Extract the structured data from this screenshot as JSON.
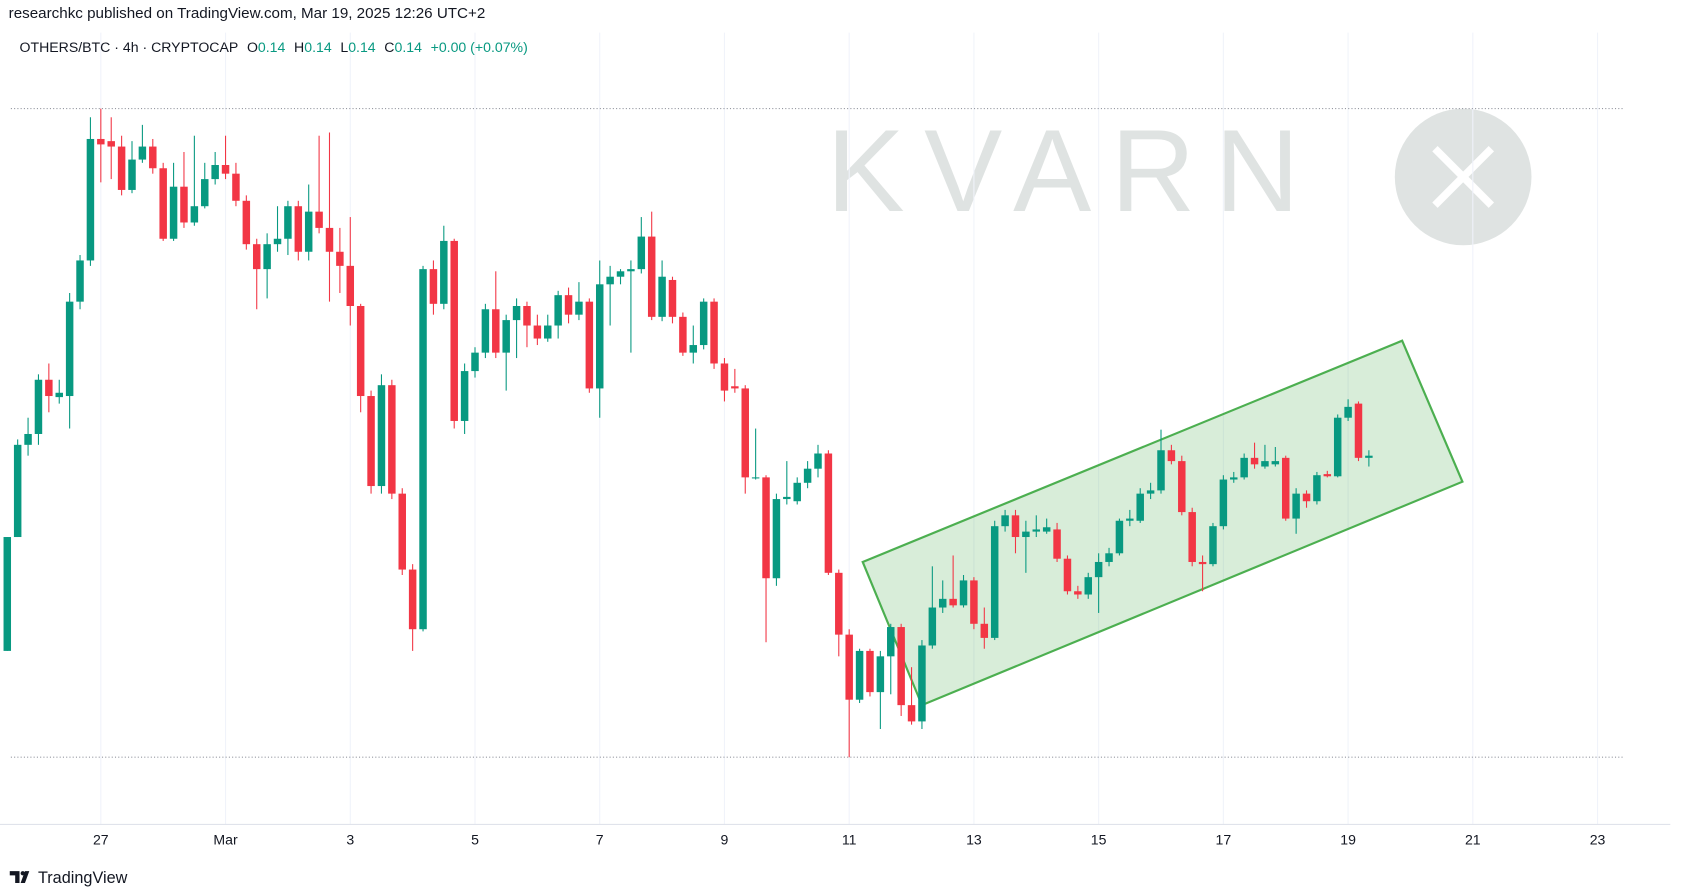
{
  "published": "researchkc published on TradingView.com, Mar 19, 2025 12:26 UTC+2",
  "footer": "TradingView",
  "chart_data": {
    "type": "candlestick",
    "symbol": "OTHERS/BTC · 4h · CRYPTOCAP",
    "ohlc_legend": [
      {
        "label": "O",
        "value": "0.14"
      },
      {
        "label": "H",
        "value": "0.14"
      },
      {
        "label": "L",
        "value": "0.14"
      },
      {
        "label": "C",
        "value": "0.14"
      }
    ],
    "change": "+0.00 (+0.07%)",
    "watermark": "KVARN",
    "up_color": "#089981",
    "down_color": "#f23645",
    "xlim": [
      -0.7,
      160
    ],
    "ylim": [
      0.106,
      0.179
    ],
    "xticks": [
      {
        "value": 9,
        "label": "27"
      },
      {
        "value": 21,
        "label": "Mar"
      },
      {
        "value": 33,
        "label": "3"
      },
      {
        "value": 45,
        "label": "5"
      },
      {
        "value": 57,
        "label": "7"
      },
      {
        "value": 69,
        "label": "9"
      },
      {
        "value": 81,
        "label": "11"
      },
      {
        "value": 93,
        "label": "13"
      },
      {
        "value": 105,
        "label": "15"
      },
      {
        "value": 117,
        "label": "17"
      },
      {
        "value": 129,
        "label": "19"
      },
      {
        "value": 141,
        "label": "21"
      },
      {
        "value": 153,
        "label": "23"
      }
    ],
    "grid": true,
    "levels": [
      0.172,
      0.1122
    ],
    "channel": {
      "color": "#4caf50",
      "x": [
        82.3,
        134.2,
        140.0,
        88.0
      ],
      "y": [
        0.1302,
        0.1506,
        0.1376,
        0.117
      ]
    },
    "open": [
      0.122,
      0.1325,
      0.141,
      0.142,
      0.147,
      0.1454,
      0.1455,
      0.1542,
      0.158,
      0.1692,
      0.169,
      0.1685,
      0.1645,
      0.1673,
      0.1685,
      0.1665,
      0.16,
      0.1648,
      0.1615,
      0.163,
      0.1655,
      0.1668,
      0.166,
      0.1635,
      0.1595,
      0.1572,
      0.1595,
      0.16,
      0.163,
      0.1588,
      0.1625,
      0.161,
      0.1588,
      0.1575,
      0.1538,
      0.1455,
      0.1372,
      0.1465,
      0.1365,
      0.1295,
      0.124,
      0.1572,
      0.154,
      0.1598,
      0.1432,
      0.1478,
      0.1495,
      0.1535,
      0.1495,
      0.1525,
      0.1538,
      0.152,
      0.1508,
      0.152,
      0.1548,
      0.153,
      0.1542,
      0.1462,
      0.1558,
      0.1565,
      0.157,
      0.1572,
      0.1602,
      0.1528,
      0.1562,
      0.1528,
      0.1495,
      0.1502,
      0.1542,
      0.1485,
      0.1464,
      0.1462,
      0.1379,
      0.138,
      0.1287,
      0.136,
      0.1358,
      0.1375,
      0.1388,
      0.1402,
      0.1292,
      0.1235,
      0.1175,
      0.122,
      0.1182,
      0.1215,
      0.1242,
      0.117,
      0.1155,
      0.1225,
      0.126,
      0.1268,
      0.1262,
      0.1285,
      0.1245,
      0.1232,
      0.1335,
      0.1345,
      0.1325,
      0.133,
      0.133,
      0.1332,
      0.1305,
      0.1275,
      0.1272,
      0.1288,
      0.1302,
      0.131,
      0.134,
      0.134,
      0.1365,
      0.1368,
      0.1405,
      0.1395,
      0.1348,
      0.1302,
      0.13,
      0.1335,
      0.1378,
      0.138,
      0.1398,
      0.139,
      0.1392,
      0.1398,
      0.1342,
      0.1365,
      0.1358,
      0.1383,
      0.1381,
      0.1435,
      0.1448,
      0.1398
    ],
    "high": [
      0.1325,
      0.1415,
      0.1435,
      0.1475,
      0.1485,
      0.147,
      0.155,
      0.1585,
      0.1712,
      0.172,
      0.1712,
      0.1695,
      0.169,
      0.1705,
      0.1692,
      0.167,
      0.167,
      0.168,
      0.1695,
      0.167,
      0.168,
      0.1695,
      0.167,
      0.164,
      0.16,
      0.1605,
      0.163,
      0.1635,
      0.1635,
      0.165,
      0.1695,
      0.1698,
      0.161,
      0.162,
      0.154,
      0.146,
      0.1475,
      0.147,
      0.137,
      0.13,
      0.1575,
      0.158,
      0.1612,
      0.16,
      0.1485,
      0.15,
      0.154,
      0.157,
      0.153,
      0.1545,
      0.1542,
      0.153,
      0.153,
      0.1552,
      0.1555,
      0.156,
      0.1545,
      0.158,
      0.1575,
      0.1572,
      0.158,
      0.162,
      0.1625,
      0.158,
      0.1565,
      0.1532,
      0.152,
      0.1545,
      0.1545,
      0.149,
      0.148,
      0.1465,
      0.1425,
      0.1382,
      0.1365,
      0.1395,
      0.138,
      0.1395,
      0.141,
      0.1405,
      0.1295,
      0.124,
      0.1222,
      0.1222,
      0.122,
      0.1245,
      0.1245,
      0.1205,
      0.123,
      0.1298,
      0.1285,
      0.1308,
      0.129,
      0.1288,
      0.126,
      0.134,
      0.135,
      0.135,
      0.134,
      0.1345,
      0.1342,
      0.1338,
      0.1308,
      0.128,
      0.1292,
      0.131,
      0.1315,
      0.1342,
      0.135,
      0.137,
      0.1375,
      0.1424,
      0.141,
      0.14,
      0.1352,
      0.1308,
      0.1338,
      0.1382,
      0.1385,
      0.1402,
      0.1412,
      0.141,
      0.1408,
      0.14,
      0.137,
      0.1368,
      0.1385,
      0.1386,
      0.1438,
      0.1452,
      0.145,
      0.1405
    ],
    "low": [
      0.122,
      0.1325,
      0.14,
      0.141,
      0.144,
      0.1448,
      0.1425,
      0.1535,
      0.1575,
      0.1652,
      0.1655,
      0.164,
      0.1642,
      0.167,
      0.166,
      0.1598,
      0.1598,
      0.161,
      0.1612,
      0.1628,
      0.165,
      0.1655,
      0.163,
      0.159,
      0.1535,
      0.1545,
      0.1588,
      0.1585,
      0.158,
      0.158,
      0.1605,
      0.1542,
      0.155,
      0.152,
      0.144,
      0.1365,
      0.1365,
      0.136,
      0.129,
      0.122,
      0.1238,
      0.153,
      0.1535,
      0.1425,
      0.142,
      0.1472,
      0.149,
      0.149,
      0.146,
      0.149,
      0.15,
      0.1502,
      0.1505,
      0.1508,
      0.1522,
      0.1525,
      0.1458,
      0.1435,
      0.152,
      0.1558,
      0.1495,
      0.1568,
      0.1525,
      0.1524,
      0.1522,
      0.1492,
      0.1485,
      0.1498,
      0.148,
      0.145,
      0.1458,
      0.1365,
      0.1378,
      0.1228,
      0.128,
      0.1355,
      0.1355,
      0.137,
      0.138,
      0.129,
      0.1215,
      0.1122,
      0.1172,
      0.1178,
      0.1148,
      0.118,
      0.116,
      0.1152,
      0.1148,
      0.1222,
      0.1255,
      0.126,
      0.126,
      0.124,
      0.1222,
      0.123,
      0.133,
      0.131,
      0.1292,
      0.1325,
      0.1328,
      0.1302,
      0.1272,
      0.1268,
      0.1268,
      0.1255,
      0.1298,
      0.1308,
      0.1335,
      0.1338,
      0.136,
      0.1365,
      0.1392,
      0.1345,
      0.1298,
      0.1275,
      0.1298,
      0.1332,
      0.1375,
      0.1378,
      0.1388,
      0.1388,
      0.139,
      0.134,
      0.1328,
      0.1352,
      0.1355,
      0.138,
      0.138,
      0.1432,
      0.1395,
      0.139
    ],
    "close": [
      0.1325,
      0.141,
      0.142,
      0.147,
      0.1455,
      0.1458,
      0.1542,
      0.158,
      0.1692,
      0.1687,
      0.1685,
      0.1645,
      0.1673,
      0.1685,
      0.1665,
      0.16,
      0.1648,
      0.1615,
      0.163,
      0.1655,
      0.1668,
      0.166,
      0.1635,
      0.1595,
      0.1572,
      0.1595,
      0.16,
      0.163,
      0.1588,
      0.1625,
      0.161,
      0.1588,
      0.1575,
      0.1538,
      0.1455,
      0.1372,
      0.1465,
      0.1365,
      0.1295,
      0.124,
      0.1572,
      0.154,
      0.1598,
      0.1432,
      0.1478,
      0.1495,
      0.1535,
      0.1495,
      0.1525,
      0.1538,
      0.152,
      0.1508,
      0.152,
      0.1548,
      0.153,
      0.1542,
      0.1462,
      0.1558,
      0.1565,
      0.157,
      0.1572,
      0.1602,
      0.1528,
      0.1565,
      0.1528,
      0.1495,
      0.1502,
      0.1542,
      0.1485,
      0.146,
      0.1462,
      0.138,
      0.138,
      0.1287,
      0.136,
      0.1362,
      0.1375,
      0.1388,
      0.1402,
      0.1292,
      0.1235,
      0.1175,
      0.122,
      0.1182,
      0.1215,
      0.1242,
      0.117,
      0.1155,
      0.1225,
      0.126,
      0.1268,
      0.1262,
      0.1285,
      0.1245,
      0.1232,
      0.1335,
      0.1345,
      0.1325,
      0.133,
      0.1332,
      0.1334,
      0.1305,
      0.1275,
      0.1272,
      0.1288,
      0.1302,
      0.131,
      0.134,
      0.1342,
      0.1365,
      0.1368,
      0.1405,
      0.1395,
      0.1348,
      0.1302,
      0.13,
      0.1335,
      0.1378,
      0.138,
      0.1398,
      0.1392,
      0.1395,
      0.1395,
      0.1342,
      0.1365,
      0.1358,
      0.1382,
      0.1381,
      0.1435,
      0.1445,
      0.1398,
      0.14
    ]
  }
}
